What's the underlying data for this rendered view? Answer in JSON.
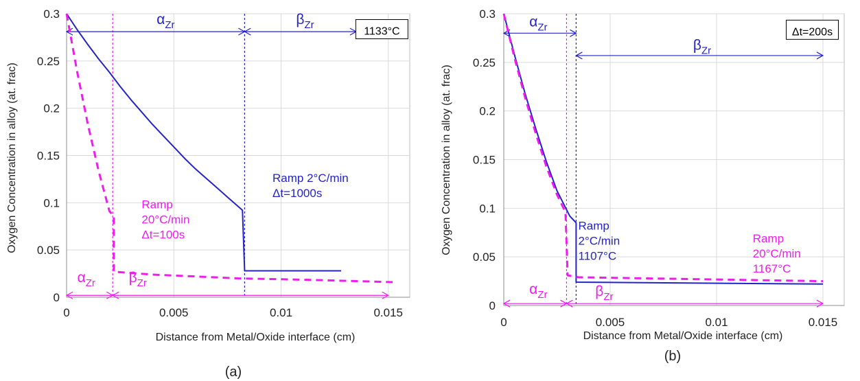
{
  "chart_data": [
    {
      "type": "line",
      "caption": "(a)",
      "xlabel": "Distance from Metal/Oxide interface (cm)",
      "ylabel": "Oxygen Concentration in alloy (at. frac)",
      "xlim": [
        0,
        0.016
      ],
      "ylim": [
        0,
        0.3
      ],
      "xticks": [
        0,
        0.005,
        0.01,
        0.015
      ],
      "xtick_labels": [
        "0",
        "0.005",
        "0.01",
        "0.015"
      ],
      "yticks": [
        0,
        0.05,
        0.1,
        0.15,
        0.2,
        0.25,
        0.3
      ],
      "ytick_labels": [
        "0",
        "0.05",
        "0.1",
        "0.15",
        "0.2",
        "0.25",
        "0.3"
      ],
      "grid": true,
      "series": [
        {
          "color": "#2323c8",
          "dash": "solid",
          "points": [
            [
              0,
              0.3
            ],
            [
              0.0005,
              0.283
            ],
            [
              0.001,
              0.267
            ],
            [
              0.0015,
              0.252
            ],
            [
              0.002,
              0.238
            ],
            [
              0.0025,
              0.223
            ],
            [
              0.003,
              0.209
            ],
            [
              0.0035,
              0.196
            ],
            [
              0.004,
              0.183
            ],
            [
              0.0045,
              0.171
            ],
            [
              0.005,
              0.159
            ],
            [
              0.0055,
              0.147
            ],
            [
              0.006,
              0.136
            ],
            [
              0.0065,
              0.126
            ],
            [
              0.007,
              0.116
            ],
            [
              0.0075,
              0.106
            ],
            [
              0.0082,
              0.092
            ],
            [
              0.0082,
              0.091
            ],
            [
              0.0083,
              0.028
            ],
            [
              0.0128,
              0.028
            ]
          ]
        },
        {
          "color": "#ee1cee",
          "dash": "dash",
          "points": [
            [
              0,
              0.3
            ],
            [
              0.0005,
              0.238
            ],
            [
              0.001,
              0.182
            ],
            [
              0.0015,
              0.133
            ],
            [
              0.002,
              0.091
            ],
            [
              0.0022,
              0.086
            ],
            [
              0.0022,
              0.027
            ],
            [
              0.004,
              0.024
            ],
            [
              0.006,
              0.022
            ],
            [
              0.008,
              0.02
            ],
            [
              0.01,
              0.019
            ],
            [
              0.012,
              0.018
            ],
            [
              0.0152,
              0.016
            ]
          ]
        }
      ],
      "vlines": [
        {
          "x": 0.00215,
          "color": "#ee1cee"
        },
        {
          "x": 0.0083,
          "color": "#2323c8"
        }
      ],
      "arrows": [
        {
          "x1": 0,
          "x2": 0.0083,
          "y": 0.281,
          "color": "#2323c8"
        },
        {
          "x1": 0.0083,
          "x2": 0.0135,
          "y": 0.281,
          "color": "#2323c8"
        },
        {
          "x1": 0,
          "x2": 0.00215,
          "y": 0.002,
          "color": "#ee1cee"
        },
        {
          "x1": 0.00215,
          "x2": 0.015,
          "y": 0.002,
          "color": "#ee1cee"
        }
      ],
      "phase_labels": [
        {
          "main": "α",
          "sub": "Zr",
          "x": 0.0042,
          "y": 0.289,
          "color": "#2323c8"
        },
        {
          "main": "β",
          "sub": "Zr",
          "x": 0.0107,
          "y": 0.289,
          "color": "#2323c8"
        },
        {
          "main": "α",
          "sub": "Zr",
          "x": 0.0005,
          "y": 0.016,
          "color": "#ee1cee"
        },
        {
          "main": "β",
          "sub": "Zr",
          "x": 0.0029,
          "y": 0.016,
          "color": "#ee1cee"
        }
      ],
      "annotations": [
        {
          "lines": [
            "Ramp 2°C/min",
            "Δt=1000s"
          ],
          "x": 0.0096,
          "y": 0.122,
          "color": "#2323c8"
        },
        {
          "lines": [
            "Ramp",
            "20°C/min",
            "Δt=100s"
          ],
          "x": 0.0035,
          "y": 0.094,
          "color": "#ee1cee"
        }
      ],
      "boxed_label": {
        "text": "1133°C",
        "x": 0.0147,
        "y": 0.28
      }
    },
    {
      "type": "line",
      "caption": "(b)",
      "xlabel": "Distance from Metal/Oxide interface (cm)",
      "ylabel": "Oxygen Concentration in alloy (at. frac)",
      "xlim": [
        0,
        0.016
      ],
      "ylim": [
        0,
        0.3
      ],
      "xticks": [
        0,
        0.005,
        0.01,
        0.015
      ],
      "xtick_labels": [
        "0",
        "0.005",
        "0.01",
        "0.015"
      ],
      "yticks": [
        0,
        0.05,
        0.1,
        0.15,
        0.2,
        0.25,
        0.3
      ],
      "ytick_labels": [
        "0",
        "0.05",
        "0.1",
        "0.15",
        "0.2",
        "0.25",
        "0.3"
      ],
      "grid": true,
      "series": [
        {
          "color": "#2323c8",
          "dash": "solid",
          "points": [
            [
              0,
              0.3
            ],
            [
              0.0005,
              0.258
            ],
            [
              0.001,
              0.218
            ],
            [
              0.0015,
              0.182
            ],
            [
              0.002,
              0.148
            ],
            [
              0.0025,
              0.118
            ],
            [
              0.0031,
              0.092
            ],
            [
              0.0034,
              0.085
            ],
            [
              0.0034,
              0.024
            ],
            [
              0.015,
              0.022
            ]
          ]
        },
        {
          "color": "#ee1cee",
          "dash": "dash",
          "points": [
            [
              0,
              0.3
            ],
            [
              0.0005,
              0.255
            ],
            [
              0.001,
              0.214
            ],
            [
              0.0015,
              0.177
            ],
            [
              0.002,
              0.143
            ],
            [
              0.0025,
              0.114
            ],
            [
              0.0029,
              0.096
            ],
            [
              0.003,
              0.031
            ],
            [
              0.0033,
              0.03
            ],
            [
              0.0035,
              0.029
            ],
            [
              0.015,
              0.025
            ]
          ]
        }
      ],
      "vlines": [
        {
          "x": 0.00295,
          "color": "#ee1cee"
        },
        {
          "x": 0.0034,
          "color": "#2323c8"
        }
      ],
      "arrows": [
        {
          "x1": 0,
          "x2": 0.0034,
          "y": 0.28,
          "color": "#2323c8"
        },
        {
          "x1": 0.0034,
          "x2": 0.015,
          "y": 0.257,
          "color": "#2323c8"
        },
        {
          "x1": 0,
          "x2": 0.00295,
          "y": 0.002,
          "color": "#ee1cee"
        },
        {
          "x1": 0.00295,
          "x2": 0.015,
          "y": 0.002,
          "color": "#ee1cee"
        }
      ],
      "phase_labels": [
        {
          "main": "α",
          "sub": "Zr",
          "x": 0.0012,
          "y": 0.287,
          "color": "#2323c8"
        },
        {
          "main": "β",
          "sub": "Zr",
          "x": 0.0089,
          "y": 0.263,
          "color": "#2323c8"
        },
        {
          "main": "α",
          "sub": "Zr",
          "x": 0.0012,
          "y": 0.012,
          "color": "#ee1cee"
        },
        {
          "main": "β",
          "sub": "Zr",
          "x": 0.0043,
          "y": 0.01,
          "color": "#ee1cee"
        }
      ],
      "annotations": [
        {
          "lines": [
            "Ramp",
            "2°C/min",
            "1107°C"
          ],
          "x": 0.0035,
          "y": 0.078,
          "color": "#2323c8"
        },
        {
          "lines": [
            "Ramp",
            "20°C/min",
            "1167°C"
          ],
          "x": 0.0117,
          "y": 0.065,
          "color": "#ee1cee"
        }
      ],
      "boxed_label": {
        "text": "Δt=200s",
        "x": 0.0145,
        "y": 0.28
      }
    }
  ]
}
